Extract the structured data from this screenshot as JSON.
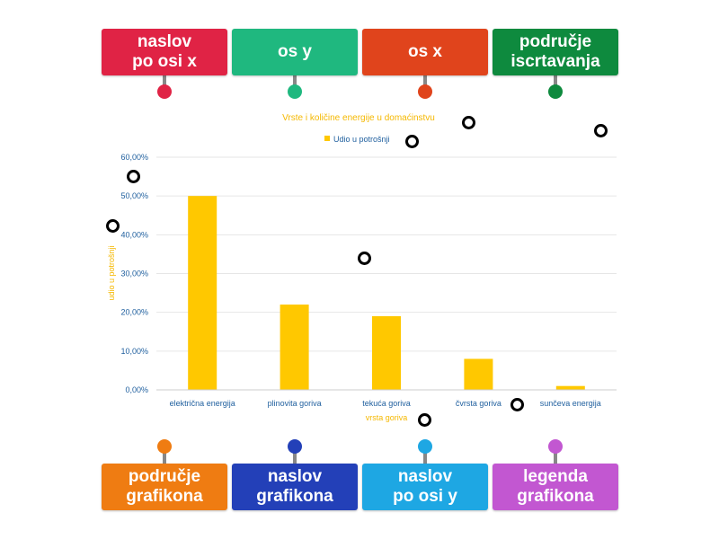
{
  "colors": {
    "red": "#e02345",
    "teal": "#1fb87f",
    "orange_red": "#e0441c",
    "green": "#0e8a3e",
    "orange": "#ef7c12",
    "navy": "#2340b8",
    "sky": "#1ea7e3",
    "purple": "#c257d1",
    "bar": "#ffc800",
    "axis_text": "#1f5f9e",
    "accent_text": "#f5b800"
  },
  "top_labels": [
    {
      "text": "naslov\npo osi x",
      "color": "#e02345"
    },
    {
      "text": "os y",
      "color": "#1fb87f"
    },
    {
      "text": "os x",
      "color": "#e0441c"
    },
    {
      "text": "područje\niscrtavanja",
      "color": "#0e8a3e"
    }
  ],
  "bottom_labels": [
    {
      "text": "područje\ngrafikona",
      "color": "#ef7c12"
    },
    {
      "text": "naslov\ngrafikona",
      "color": "#2340b8"
    },
    {
      "text": "naslov\npo osi y",
      "color": "#1ea7e3"
    },
    {
      "text": "legenda\ngrafikona",
      "color": "#c257d1"
    }
  ],
  "chart_data": {
    "type": "bar",
    "title": "Vrste i količine energije u domaćinstvu",
    "xlabel": "vrsta goriva",
    "ylabel": "udio u potrošnji",
    "categories": [
      "električna energija",
      "plinovita goriva",
      "tekuća goriva",
      "čvrsta goriva",
      "sunčeva energija"
    ],
    "series": [
      {
        "name": "Udio u potrošnji",
        "values": [
          50,
          22,
          19,
          8,
          1
        ]
      }
    ],
    "ylim": [
      0,
      60
    ],
    "yticks": [
      "0,00%",
      "10,00%",
      "20,00%",
      "30,00%",
      "40,00%",
      "50,00%",
      "60,00%"
    ],
    "grid": true,
    "legend": "top"
  }
}
